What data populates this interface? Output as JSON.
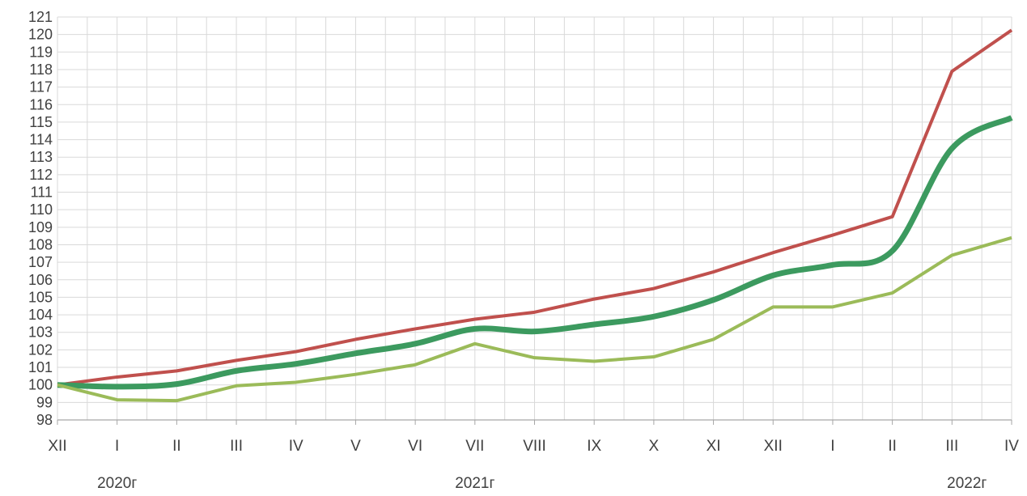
{
  "chart_data": {
    "type": "line",
    "title": "",
    "xlabel": "",
    "ylabel": "",
    "categories": [
      "XII",
      "I",
      "II",
      "III",
      "IV",
      "V",
      "VI",
      "VII",
      "VIII",
      "IX",
      "X",
      "XI",
      "XII",
      "I",
      "II",
      "III",
      "IV"
    ],
    "year_labels": [
      {
        "text": "2020г",
        "category_index": 1
      },
      {
        "text": "2021г",
        "category_index": 7
      },
      {
        "text": "2022г",
        "category_index": 15.25
      }
    ],
    "ylim": [
      98,
      121
    ],
    "yticks": [
      98,
      99,
      100,
      101,
      102,
      103,
      104,
      105,
      106,
      107,
      108,
      109,
      110,
      111,
      112,
      113,
      114,
      115,
      116,
      117,
      118,
      119,
      120,
      121
    ],
    "grid": true,
    "minor_vertical_grid": true,
    "legend": "none",
    "series": [
      {
        "color": "#c0504d",
        "smooth": false,
        "values": [
          100.0,
          100.45,
          100.8,
          101.4,
          101.9,
          102.6,
          103.2,
          103.75,
          104.15,
          104.9,
          105.5,
          106.45,
          107.55,
          108.55,
          109.6,
          117.9,
          120.25
        ]
      },
      {
        "color": "#3c9a5f",
        "smooth": true,
        "values": [
          100.0,
          99.9,
          100.05,
          100.8,
          101.2,
          101.8,
          102.35,
          103.2,
          103.05,
          103.45,
          103.9,
          104.85,
          106.25,
          106.85,
          107.65,
          113.5,
          115.25
        ]
      },
      {
        "color": "#9bbb59",
        "smooth": false,
        "values": [
          100.0,
          99.15,
          99.1,
          99.95,
          100.15,
          100.6,
          101.15,
          102.35,
          101.55,
          101.35,
          101.6,
          102.6,
          104.45,
          104.45,
          105.25,
          107.4,
          108.4
        ]
      }
    ]
  }
}
